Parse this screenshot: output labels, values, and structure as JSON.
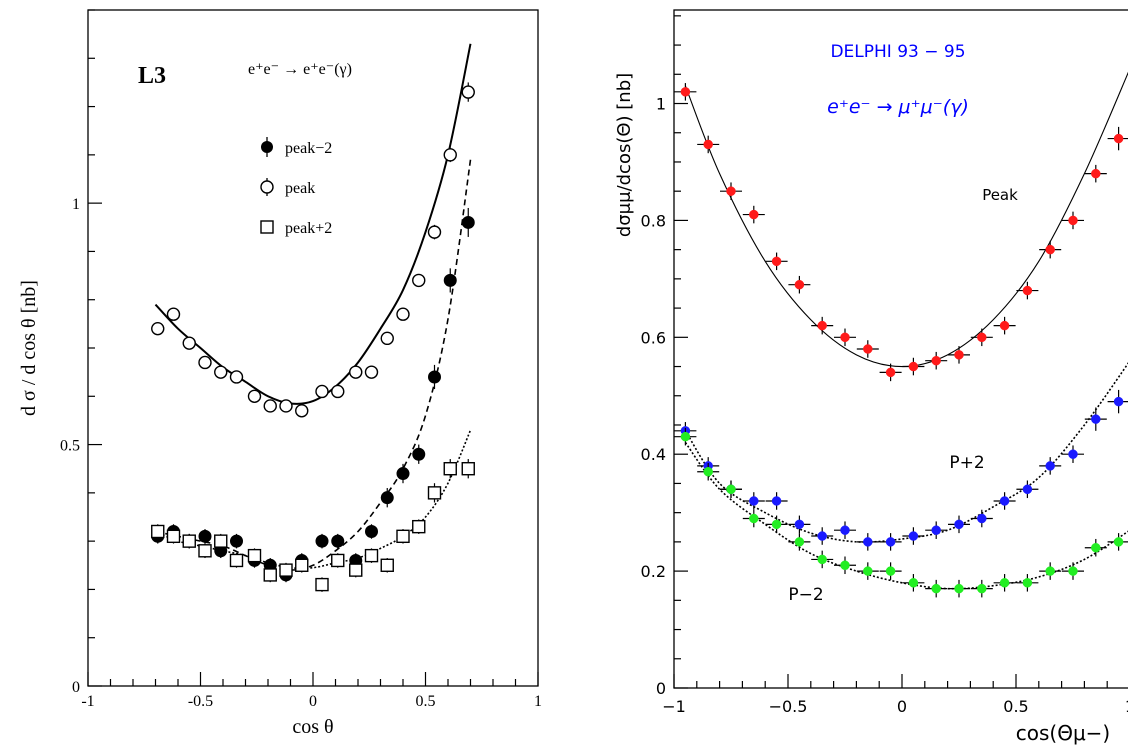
{
  "chart_data": [
    {
      "type": "scatter",
      "panel_label": "L3",
      "process": "e⁺e⁻ → e⁺e⁻(γ)",
      "xlabel": "cos θ",
      "ylabel": "d σ / d cos θ [nb]",
      "xlim": [
        -1,
        1
      ],
      "ylim": [
        0,
        1.4
      ],
      "x_ticks": [
        -1,
        -0.5,
        0,
        0.5,
        1
      ],
      "x_tick_labels": [
        "-1",
        "-0.5",
        "0",
        "0.5",
        "1"
      ],
      "y_ticks": [
        0,
        0.5,
        1
      ],
      "y_tick_labels": [
        "0",
        "0.5",
        "1"
      ],
      "legend_position": "upper-left",
      "grid": false,
      "series": [
        {
          "name": "peak−2",
          "marker": "filled-circle",
          "x": [
            -0.69,
            -0.62,
            -0.55,
            -0.48,
            -0.41,
            -0.34,
            -0.26,
            -0.19,
            -0.12,
            -0.05,
            0.04,
            0.11,
            0.19,
            0.26,
            0.33,
            0.4,
            0.47,
            0.54,
            0.61,
            0.69
          ],
          "y": [
            0.31,
            0.32,
            0.3,
            0.31,
            0.28,
            0.3,
            0.26,
            0.25,
            0.23,
            0.26,
            0.3,
            0.3,
            0.26,
            0.32,
            0.39,
            0.44,
            0.48,
            0.64,
            0.84,
            0.96
          ],
          "err": [
            0.015,
            0.015,
            0.015,
            0.015,
            0.015,
            0.015,
            0.015,
            0.015,
            0.015,
            0.015,
            0.015,
            0.015,
            0.015,
            0.015,
            0.02,
            0.02,
            0.02,
            0.025,
            0.025,
            0.03
          ]
        },
        {
          "name": "peak",
          "marker": "open-circle",
          "x": [
            -0.69,
            -0.62,
            -0.55,
            -0.48,
            -0.41,
            -0.34,
            -0.26,
            -0.19,
            -0.12,
            -0.05,
            0.04,
            0.11,
            0.19,
            0.26,
            0.33,
            0.4,
            0.47,
            0.54,
            0.61,
            0.69
          ],
          "y": [
            0.74,
            0.77,
            0.71,
            0.67,
            0.65,
            0.64,
            0.6,
            0.58,
            0.58,
            0.57,
            0.61,
            0.61,
            0.65,
            0.65,
            0.72,
            0.77,
            0.84,
            0.94,
            1.1,
            1.23
          ],
          "err": [
            0.01,
            0.01,
            0.01,
            0.01,
            0.01,
            0.01,
            0.01,
            0.01,
            0.01,
            0.01,
            0.01,
            0.01,
            0.01,
            0.01,
            0.01,
            0.01,
            0.01,
            0.015,
            0.015,
            0.02
          ]
        },
        {
          "name": "peak+2",
          "marker": "open-square",
          "x": [
            -0.69,
            -0.62,
            -0.55,
            -0.48,
            -0.41,
            -0.34,
            -0.26,
            -0.19,
            -0.12,
            -0.05,
            0.04,
            0.11,
            0.19,
            0.26,
            0.33,
            0.4,
            0.47,
            0.54,
            0.61,
            0.69
          ],
          "y": [
            0.32,
            0.31,
            0.3,
            0.28,
            0.3,
            0.26,
            0.27,
            0.23,
            0.24,
            0.25,
            0.21,
            0.26,
            0.24,
            0.27,
            0.25,
            0.31,
            0.33,
            0.4,
            0.45,
            0.45
          ],
          "err": [
            0.015,
            0.015,
            0.015,
            0.015,
            0.015,
            0.015,
            0.015,
            0.015,
            0.015,
            0.015,
            0.015,
            0.015,
            0.015,
            0.015,
            0.015,
            0.015,
            0.015,
            0.02,
            0.02,
            0.02
          ]
        }
      ],
      "curves": [
        {
          "style": "solid",
          "x": [
            -0.7,
            -0.6,
            -0.5,
            -0.4,
            -0.3,
            -0.2,
            -0.1,
            0.0,
            0.1,
            0.2,
            0.3,
            0.4,
            0.5,
            0.6,
            0.7
          ],
          "y": [
            0.79,
            0.74,
            0.7,
            0.66,
            0.63,
            0.6,
            0.585,
            0.59,
            0.62,
            0.67,
            0.74,
            0.82,
            0.94,
            1.1,
            1.33
          ]
        },
        {
          "style": "dashed",
          "x": [
            -0.7,
            -0.6,
            -0.5,
            -0.4,
            -0.3,
            -0.2,
            -0.1,
            0.0,
            0.1,
            0.2,
            0.3,
            0.4,
            0.5,
            0.6,
            0.7
          ],
          "y": [
            0.32,
            0.31,
            0.3,
            0.29,
            0.27,
            0.25,
            0.24,
            0.25,
            0.28,
            0.32,
            0.38,
            0.45,
            0.56,
            0.76,
            1.09
          ]
        },
        {
          "style": "dotted",
          "x": [
            -0.7,
            -0.6,
            -0.5,
            -0.4,
            -0.3,
            -0.2,
            -0.1,
            0.0,
            0.1,
            0.2,
            0.3,
            0.4,
            0.5,
            0.6,
            0.7
          ],
          "y": [
            0.32,
            0.3,
            0.29,
            0.28,
            0.27,
            0.255,
            0.245,
            0.245,
            0.255,
            0.265,
            0.285,
            0.31,
            0.35,
            0.42,
            0.53
          ]
        }
      ]
    },
    {
      "type": "scatter",
      "title": "DELPHI 93 − 95",
      "process": "e⁺e⁻ → μ⁺μ⁻(γ)",
      "xlabel": "cos(Θμ−)",
      "ylabel": "dσμμ/dcos(Θ) [nb]",
      "xlim": [
        -1,
        1
      ],
      "ylim": [
        0,
        1.16
      ],
      "x_ticks": [
        -1,
        -0.5,
        0,
        0.5,
        1
      ],
      "x_tick_labels": [
        "−1",
        "−0.5",
        "0",
        "0.5",
        "1"
      ],
      "y_ticks": [
        0,
        0.2,
        0.4,
        0.6,
        0.8,
        1.0
      ],
      "y_tick_labels": [
        "0",
        "0.2",
        "0.4",
        "0.6",
        "0.8",
        "1"
      ],
      "grid": false,
      "colors": {
        "peak": "#ff1a1a",
        "p_plus_2": "#1a1aff",
        "p_minus_2": "#22ee22",
        "title": "#0000ff"
      },
      "series": [
        {
          "name": "Peak",
          "x": [
            -0.95,
            -0.85,
            -0.75,
            -0.65,
            -0.55,
            -0.45,
            -0.35,
            -0.25,
            -0.15,
            -0.05,
            0.05,
            0.15,
            0.25,
            0.35,
            0.45,
            0.55,
            0.65,
            0.75,
            0.85,
            0.95
          ],
          "y": [
            1.02,
            0.93,
            0.85,
            0.81,
            0.73,
            0.69,
            0.62,
            0.6,
            0.58,
            0.54,
            0.55,
            0.56,
            0.57,
            0.6,
            0.62,
            0.68,
            0.75,
            0.8,
            0.88,
            0.94
          ],
          "err": [
            0.015,
            0.015,
            0.015,
            0.015,
            0.015,
            0.015,
            0.015,
            0.015,
            0.015,
            0.015,
            0.015,
            0.015,
            0.015,
            0.015,
            0.015,
            0.015,
            0.015,
            0.015,
            0.015,
            0.02
          ]
        },
        {
          "name": "P+2",
          "x": [
            -0.95,
            -0.85,
            -0.75,
            -0.65,
            -0.55,
            -0.45,
            -0.35,
            -0.25,
            -0.15,
            -0.05,
            0.05,
            0.15,
            0.25,
            0.35,
            0.45,
            0.55,
            0.65,
            0.75,
            0.85,
            0.95
          ],
          "y": [
            0.44,
            0.38,
            0.34,
            0.32,
            0.32,
            0.28,
            0.26,
            0.27,
            0.25,
            0.25,
            0.26,
            0.27,
            0.28,
            0.29,
            0.32,
            0.34,
            0.38,
            0.4,
            0.46,
            0.49
          ],
          "err": [
            0.015,
            0.015,
            0.015,
            0.015,
            0.015,
            0.015,
            0.015,
            0.015,
            0.015,
            0.015,
            0.015,
            0.015,
            0.015,
            0.015,
            0.015,
            0.015,
            0.015,
            0.015,
            0.02,
            0.02
          ]
        },
        {
          "name": "P−2",
          "x": [
            -0.95,
            -0.85,
            -0.75,
            -0.65,
            -0.55,
            -0.45,
            -0.35,
            -0.25,
            -0.15,
            -0.05,
            0.05,
            0.15,
            0.25,
            0.35,
            0.45,
            0.55,
            0.65,
            0.75,
            0.85,
            0.95
          ],
          "y": [
            0.43,
            0.37,
            0.34,
            0.29,
            0.28,
            0.25,
            0.22,
            0.21,
            0.2,
            0.2,
            0.18,
            0.17,
            0.17,
            0.17,
            0.18,
            0.18,
            0.2,
            0.2,
            0.24,
            0.25
          ],
          "err": [
            0.015,
            0.015,
            0.015,
            0.015,
            0.015,
            0.015,
            0.015,
            0.015,
            0.015,
            0.015,
            0.015,
            0.015,
            0.015,
            0.015,
            0.015,
            0.015,
            0.015,
            0.015,
            0.015,
            0.015
          ]
        }
      ],
      "curves": [
        {
          "style": "solid",
          "x": [
            -0.95,
            -0.8,
            -0.6,
            -0.4,
            -0.2,
            0.0,
            0.2,
            0.4,
            0.6,
            0.8,
            1.0
          ],
          "y": [
            1.03,
            0.88,
            0.73,
            0.63,
            0.57,
            0.55,
            0.57,
            0.63,
            0.73,
            0.88,
            1.06
          ]
        },
        {
          "style": "dotted",
          "x": [
            -0.95,
            -0.8,
            -0.6,
            -0.4,
            -0.2,
            0.0,
            0.2,
            0.4,
            0.6,
            0.8,
            1.0
          ],
          "y": [
            0.44,
            0.35,
            0.3,
            0.265,
            0.25,
            0.255,
            0.27,
            0.31,
            0.36,
            0.45,
            0.56
          ]
        },
        {
          "style": "dotted",
          "x": [
            -0.95,
            -0.8,
            -0.6,
            -0.4,
            -0.2,
            0.0,
            0.2,
            0.4,
            0.6,
            0.8,
            1.0
          ],
          "y": [
            0.42,
            0.34,
            0.28,
            0.23,
            0.2,
            0.18,
            0.17,
            0.175,
            0.19,
            0.22,
            0.27
          ]
        }
      ]
    }
  ]
}
